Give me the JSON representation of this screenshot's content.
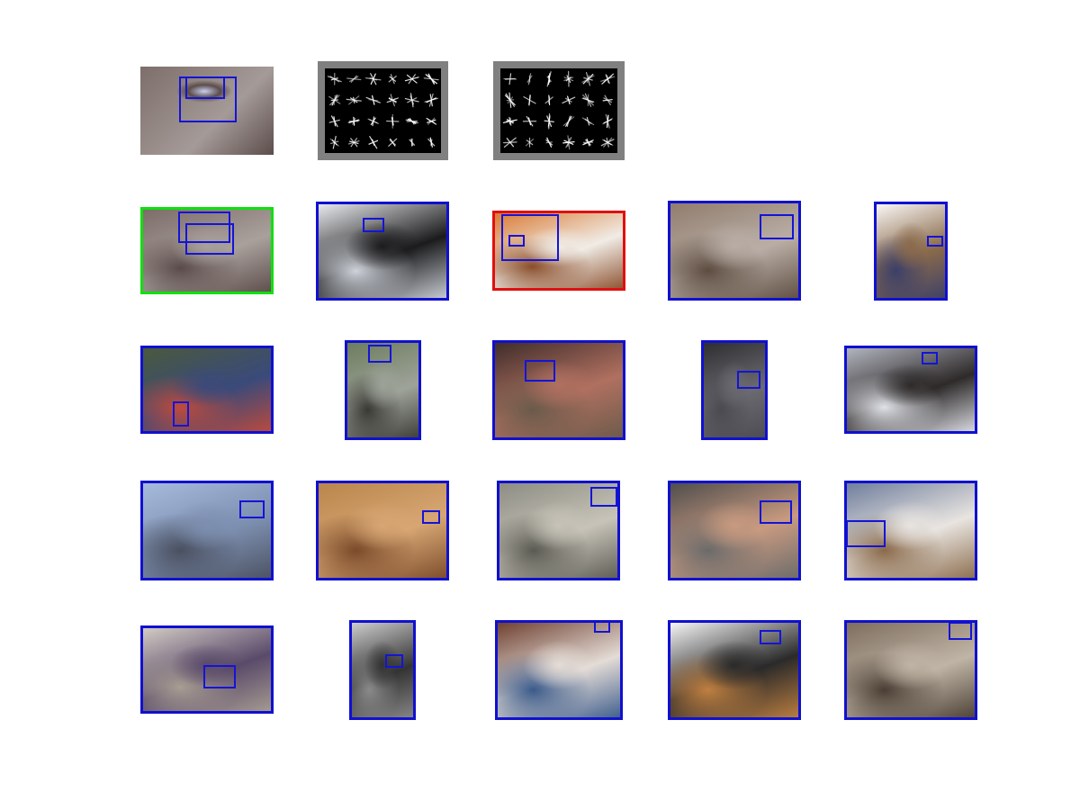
{
  "colors": {
    "frame_blue": "#1010d0",
    "frame_green": "#10e010",
    "frame_red": "#e01010",
    "box_blue": "#1414d8",
    "hog_background": "#808080"
  },
  "query": {
    "thumbnails": [
      {
        "name": "query-horse-eye-image",
        "kind": "photo",
        "palette": [
          "#7d6e6a",
          "#a49a97",
          "#5c4d4b"
        ]
      },
      {
        "name": "query-hog-visualization-a",
        "kind": "hog"
      },
      {
        "name": "query-hog-visualization-b",
        "kind": "hog"
      }
    ]
  },
  "results": [
    {
      "name": "result-horse-eye",
      "frame": "green",
      "palette": [
        "#7a6a66",
        "#a9a09c",
        "#5a4b49"
      ]
    },
    {
      "name": "result-black-dog-in-snow",
      "frame": "blue",
      "palette": [
        "#f2f3f6",
        "#1b1b1d",
        "#cfd3da"
      ]
    },
    {
      "name": "result-soccer-player",
      "frame": "red",
      "palette": [
        "#d8752c",
        "#f0ece6",
        "#8a4d2a"
      ]
    },
    {
      "name": "result-brown-cat-lying",
      "frame": "blue",
      "palette": [
        "#8f7a6a",
        "#b9aea6",
        "#5d4c40"
      ]
    },
    {
      "name": "result-yorkie-in-sweater",
      "frame": "blue",
      "palette": [
        "#ffffff",
        "#8a6a4a",
        "#3b3f6a"
      ]
    },
    {
      "name": "result-race-car",
      "frame": "blue",
      "palette": [
        "#4a5a3a",
        "#3a4a7a",
        "#c04a3a"
      ]
    },
    {
      "name": "result-tabby-cat-lying",
      "frame": "blue",
      "palette": [
        "#6a7a5a",
        "#9ea39a",
        "#3a3a34"
      ]
    },
    {
      "name": "result-people-indoors",
      "frame": "blue",
      "palette": [
        "#3a2a28",
        "#b07060",
        "#6a5a4a"
      ]
    },
    {
      "name": "result-dark-dog-closeup",
      "frame": "blue",
      "palette": [
        "#2a2a2e",
        "#6a6a70",
        "#4a4a50"
      ]
    },
    {
      "name": "result-longhair-cat",
      "frame": "blue",
      "palette": [
        "#b9bcc6",
        "#2e2a2a",
        "#e0e2e8"
      ]
    },
    {
      "name": "result-fighter-jet",
      "frame": "blue",
      "palette": [
        "#a8bcde",
        "#7d8fb0",
        "#4a5060"
      ]
    },
    {
      "name": "result-orange-cat-face",
      "frame": "blue",
      "palette": [
        "#b8844a",
        "#d7a673",
        "#7a4a2a"
      ]
    },
    {
      "name": "result-gray-cat-face",
      "frame": "blue",
      "palette": [
        "#8a8a80",
        "#c7c3b8",
        "#5a5a52"
      ]
    },
    {
      "name": "result-baby-in-armchair",
      "frame": "blue",
      "palette": [
        "#4a4a4a",
        "#c89a80",
        "#6a6a6a"
      ]
    },
    {
      "name": "result-cat-with-toy",
      "frame": "blue",
      "palette": [
        "#6a7a9a",
        "#e8e4e0",
        "#8a6a4a"
      ]
    },
    {
      "name": "result-white-dog-sleeping",
      "frame": "blue",
      "palette": [
        "#d8d2c8",
        "#5a4a6a",
        "#a89e92"
      ]
    },
    {
      "name": "result-smiling-woman-bw",
      "frame": "blue",
      "palette": [
        "#d6d6d6",
        "#333333",
        "#8a8a8a"
      ]
    },
    {
      "name": "result-siamese-cat",
      "frame": "blue",
      "palette": [
        "#6a3a2a",
        "#e4dcd6",
        "#3a5a8a"
      ]
    },
    {
      "name": "result-yorkie-with-bag",
      "frame": "blue",
      "palette": [
        "#ffffff",
        "#2a2a2a",
        "#c08040"
      ]
    },
    {
      "name": "result-tabby-kitten-face",
      "frame": "blue",
      "palette": [
        "#7a6a5a",
        "#c0b4a6",
        "#4a3e34"
      ]
    }
  ]
}
